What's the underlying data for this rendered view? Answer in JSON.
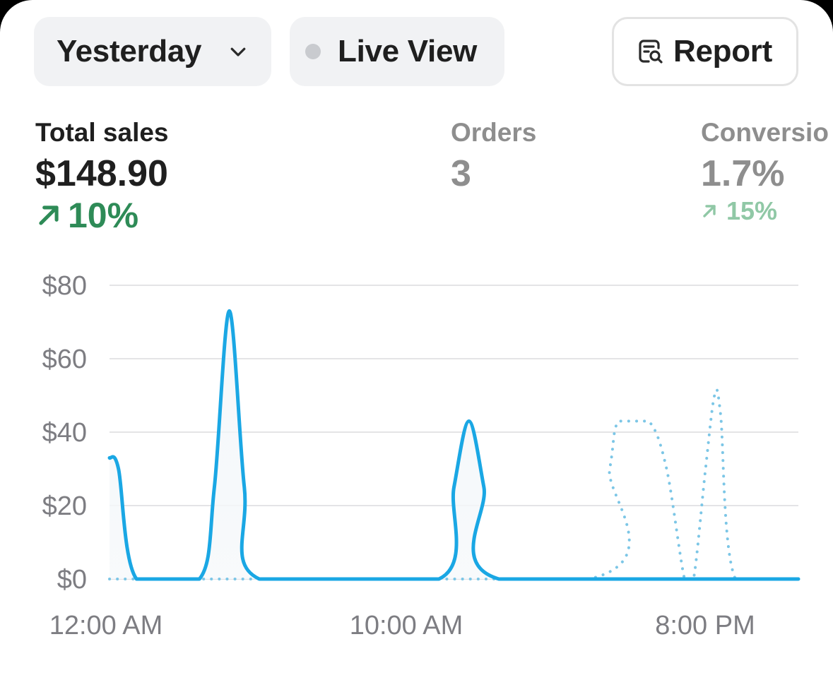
{
  "filters": {
    "date_range": "Yesterday",
    "live_view": "Live View",
    "report": "Report"
  },
  "metrics": [
    {
      "label": "Total sales",
      "value": "$148.90",
      "change": "10%",
      "active": true
    },
    {
      "label": "Orders",
      "value": "3"
    },
    {
      "label": "Conversio",
      "value": "1.7%",
      "change": "15%"
    }
  ],
  "icons": {
    "date_range": "chevron-down-icon",
    "live_view": "dot-icon",
    "report": "report-search-icon",
    "trend": "arrow-up-right-icon"
  },
  "colors": {
    "series_line": "#1aa7e4",
    "positive_change": "#2e8b57",
    "positive_change_muted": "#90c8a6",
    "inactive_text": "#8e8e8e"
  },
  "chart_data": {
    "type": "line",
    "x_ticks": [
      "12:00 AM",
      "10:00 AM",
      "8:00 PM"
    ],
    "y_ticks": [
      "$80",
      "$60",
      "$40",
      "$20",
      "$0"
    ],
    "ylim": [
      0,
      80
    ],
    "x_domain_hours": [
      0,
      23
    ],
    "grid": true,
    "series": [
      {
        "style": "solid",
        "points": [
          [
            0,
            33
          ],
          [
            0.3,
            30
          ],
          [
            0.9,
            0
          ],
          [
            3,
            0
          ],
          [
            3.5,
            25
          ],
          [
            4,
            73
          ],
          [
            4.5,
            25
          ],
          [
            5,
            0
          ],
          [
            11,
            0
          ],
          [
            11.5,
            25
          ],
          [
            12,
            43
          ],
          [
            12.5,
            25
          ],
          [
            13,
            0
          ],
          [
            23,
            0
          ]
        ]
      },
      {
        "style": "dotted",
        "points": [
          [
            0,
            0
          ],
          [
            16,
            0
          ],
          [
            16.7,
            30
          ],
          [
            17,
            43
          ],
          [
            18,
            43
          ],
          [
            18.6,
            30
          ],
          [
            19.2,
            0
          ],
          [
            19.5,
            0
          ],
          [
            19.9,
            30
          ],
          [
            20.2,
            50
          ],
          [
            20.4,
            45
          ],
          [
            20.9,
            0
          ],
          [
            23,
            0
          ]
        ]
      }
    ]
  }
}
